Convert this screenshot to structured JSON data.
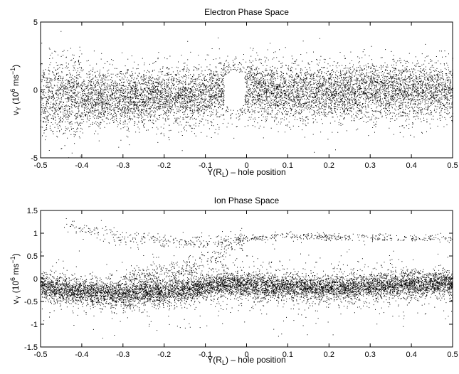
{
  "chart_data": [
    {
      "type": "scatter",
      "title": "Electron Phase Space",
      "xlabel": "Y(R_L) – hole position",
      "xlabel_main": "Y(R",
      "xlabel_sub": "L",
      "xlabel_tail": ") – hole position",
      "ylabel_base": "v",
      "ylabel_sub": "Y",
      "ylabel_paren": " (10",
      "ylabel_exp1": "6",
      "ylabel_mid": " ms",
      "ylabel_exp2": "−1",
      "ylabel_close": ")",
      "xlim": [
        -0.5,
        0.5
      ],
      "ylim": [
        -5,
        5
      ],
      "xticks": [
        -0.5,
        -0.4,
        -0.3,
        -0.2,
        -0.1,
        0,
        0.1,
        0.2,
        0.3,
        0.4,
        0.5
      ],
      "xtick_labels": [
        "-0.5",
        "-0.4",
        "-0.3",
        "-0.2",
        "-0.1",
        "0",
        "0.1",
        "0.2",
        "0.3",
        "0.4",
        "0.5"
      ],
      "yticks": [
        -5,
        0,
        5
      ],
      "ytick_labels": [
        "-5",
        "0",
        "5"
      ],
      "grid": false,
      "marker_color": "#000000",
      "distribution": {
        "description_points": "dense particle cloud centered near v=-0.3, with phase-space hole near x=-0.03",
        "center_v_by_x": [
          [
            -0.5,
            -0.5
          ],
          [
            -0.3,
            -0.6
          ],
          [
            -0.1,
            -0.3
          ],
          [
            -0.03,
            0.2
          ],
          [
            0.1,
            -0.2
          ],
          [
            0.3,
            -0.1
          ],
          [
            0.5,
            0.0
          ]
        ],
        "spread_v": 1.4,
        "hole_center": [
          -0.03,
          0.0
        ],
        "hole_half_width": [
          0.025,
          1.5
        ]
      }
    },
    {
      "type": "scatter",
      "title": "Ion Phase Space",
      "xlabel": "Y(R_L) – hole position",
      "xlabel_main": "Y(R",
      "xlabel_sub": "L",
      "xlabel_tail": ") – hole position",
      "ylabel_base": "v",
      "ylabel_sub": "Y",
      "ylabel_paren": " (10",
      "ylabel_exp1": "6",
      "ylabel_mid": " ms",
      "ylabel_exp2": "−1",
      "ylabel_close": ")",
      "xlim": [
        -0.5,
        0.5
      ],
      "ylim": [
        -1.5,
        1.5
      ],
      "xticks": [
        -0.5,
        -0.4,
        -0.3,
        -0.2,
        -0.1,
        0,
        0.1,
        0.2,
        0.3,
        0.4,
        0.5
      ],
      "xtick_labels": [
        "-0.5",
        "-0.4",
        "-0.3",
        "-0.2",
        "-0.1",
        "0",
        "0.1",
        "0.2",
        "0.3",
        "0.4",
        "0.5"
      ],
      "yticks": [
        -1.5,
        -1,
        -0.5,
        0,
        0.5,
        1,
        1.5
      ],
      "ytick_labels": [
        "-1.5",
        "-1",
        "-0.5",
        "0",
        "0.5",
        "1",
        "1.5"
      ],
      "grid": false,
      "marker_color": "#000000",
      "distribution": {
        "main_band_center_v_by_x": [
          [
            -0.5,
            -0.15
          ],
          [
            -0.45,
            -0.25
          ],
          [
            -0.3,
            -0.32
          ],
          [
            -0.15,
            -0.25
          ],
          [
            -0.05,
            -0.1
          ],
          [
            0.0,
            -0.15
          ],
          [
            0.2,
            -0.2
          ],
          [
            0.4,
            -0.12
          ],
          [
            0.5,
            -0.1
          ]
        ],
        "main_band_spread_v": 0.14,
        "beam_v_by_x": [
          [
            -0.45,
            1.2
          ],
          [
            -0.3,
            0.9
          ],
          [
            -0.1,
            0.8
          ],
          [
            0.0,
            0.9
          ],
          [
            0.1,
            0.95
          ],
          [
            0.3,
            0.9
          ],
          [
            0.5,
            0.9
          ]
        ],
        "rising_streak": [
          [
            -0.3,
            0.0
          ],
          [
            -0.15,
            0.2
          ],
          [
            -0.07,
            0.5
          ],
          [
            -0.03,
            0.8
          ]
        ]
      }
    }
  ]
}
